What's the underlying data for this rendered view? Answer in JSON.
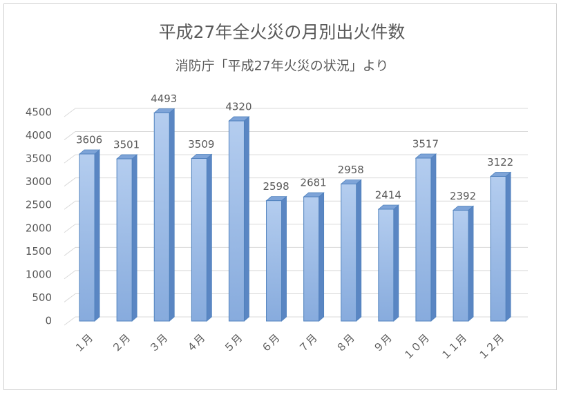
{
  "chart_data": {
    "type": "bar3d",
    "title": "平成27年全火災の月別出火件数",
    "subtitle": "消防庁「平成27年火災の状況」より",
    "categories": [
      "１月",
      "２月",
      "３月",
      "４月",
      "５月",
      "６月",
      "７月",
      "８月",
      "９月",
      "１０月",
      "１１月",
      "１２月"
    ],
    "values": [
      3606,
      3501,
      4493,
      3509,
      4320,
      2598,
      2681,
      2958,
      2414,
      3517,
      2392,
      3122
    ],
    "color": "#8fb3e3",
    "ylim": [
      0,
      4500
    ],
    "yticks": [
      0,
      500,
      1000,
      1500,
      2000,
      2500,
      3000,
      3500,
      4000,
      4500
    ],
    "grid": true
  }
}
